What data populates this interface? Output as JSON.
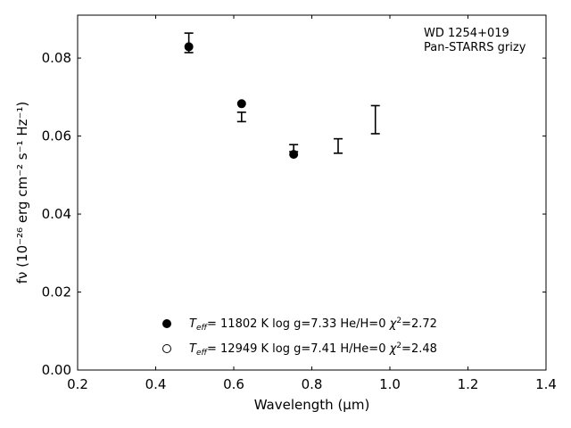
{
  "chart_data": {
    "type": "scatter",
    "annotation_lines": [
      "WD 1254+019",
      "Pan-STARRS grizy"
    ],
    "xlabel": "Wavelength (μm)",
    "ylabel": "fν (10⁻²⁶ erg cm⁻² s⁻¹ Hz⁻¹)",
    "xlim": [
      0.2,
      1.4
    ],
    "ylim": [
      0.0,
      0.091
    ],
    "x_ticks": [
      0.2,
      0.4,
      0.6,
      0.8,
      1.0,
      1.2,
      1.4
    ],
    "x_tick_labels": [
      "0.2",
      "0.4",
      "0.6",
      "0.8",
      "1.0",
      "1.2",
      "1.4"
    ],
    "y_ticks": [
      0.0,
      0.02,
      0.04,
      0.06,
      0.08
    ],
    "y_tick_labels": [
      "0.00",
      "0.02",
      "0.04",
      "0.06",
      "0.08"
    ],
    "grid": false,
    "observed": {
      "x": [
        0.4849,
        0.6201,
        0.7535,
        0.8674,
        0.9628
      ],
      "y": [
        0.0839,
        0.0649,
        0.0569,
        0.0575,
        0.0642
      ],
      "yerr_low": [
        0.0025,
        0.0012,
        0.0009,
        0.0019,
        0.0036
      ],
      "yerr_high": [
        0.0025,
        0.0012,
        0.0009,
        0.0018,
        0.0036
      ]
    },
    "series": [
      {
        "name": "He/H=0",
        "marker": "filled-circle",
        "x": [
          0.4849,
          0.6201,
          0.7535
        ],
        "y": [
          0.0829,
          0.0683,
          0.0553
        ]
      },
      {
        "name": "H/He=0",
        "marker": "open-circle",
        "x": [],
        "y": []
      }
    ],
    "legend": {
      "placement": "lower-center",
      "entries": [
        {
          "teff": "11802",
          "logg": "7.33",
          "comp": "He/H=0",
          "chi2": "2.72"
        },
        {
          "teff": "12949",
          "logg": "7.41",
          "comp": "H/He=0",
          "chi2": "2.48"
        }
      ]
    },
    "colors": {
      "marker": "#000000",
      "axes": "#000000"
    }
  }
}
